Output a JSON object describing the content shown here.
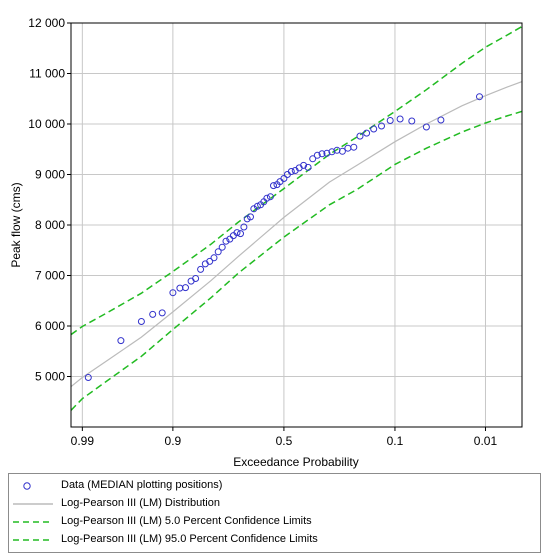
{
  "chart_data": {
    "type": "scatter",
    "xlabel": "Exceedance Probability",
    "ylabel": "Peak flow (cms)",
    "x_scale": "normal probability (reversed)",
    "x_tick_labels": [
      "0.99",
      "0.9",
      "0.5",
      "0.1",
      "0.01"
    ],
    "x_ticks": [
      0.99,
      0.9,
      0.5,
      0.1,
      0.01
    ],
    "y_tick_labels": [
      "5 000",
      "6 000",
      "7 000",
      "8 000",
      "9 000",
      "10 000",
      "11 000",
      "12 000"
    ],
    "y_ticks": [
      5000,
      6000,
      7000,
      8000,
      9000,
      10000,
      11000,
      12000
    ],
    "xlim": [
      0.993,
      0.003
    ],
    "ylim": [
      4000,
      12000
    ],
    "grid": true,
    "legend_position": "bottom",
    "colors": {
      "data": "#3333cc",
      "fit": "#bbbbbb",
      "conf": "#22bb22"
    },
    "series": [
      {
        "name": "Data (MEDIAN plotting positions)",
        "style": "circles",
        "x": [
          0.988,
          0.97,
          0.95,
          0.935,
          0.92,
          0.9,
          0.885,
          0.872,
          0.858,
          0.846,
          0.832,
          0.818,
          0.804,
          0.79,
          0.776,
          0.762,
          0.748,
          0.734,
          0.72,
          0.706,
          0.692,
          0.678,
          0.664,
          0.65,
          0.636,
          0.62,
          0.606,
          0.592,
          0.578,
          0.562,
          0.548,
          0.532,
          0.518,
          0.5,
          0.484,
          0.466,
          0.448,
          0.43,
          0.41,
          0.39,
          0.37,
          0.35,
          0.33,
          0.31,
          0.29,
          0.27,
          0.25,
          0.23,
          0.21,
          0.19,
          0.17,
          0.15,
          0.13,
          0.11,
          0.09,
          0.07,
          0.05,
          0.035,
          0.012
        ],
        "y": [
          4980,
          5710,
          6090,
          6230,
          6260,
          6660,
          6750,
          6760,
          6890,
          6940,
          7120,
          7230,
          7280,
          7350,
          7470,
          7560,
          7680,
          7720,
          7790,
          7850,
          7830,
          7960,
          8120,
          8160,
          8320,
          8370,
          8400,
          8460,
          8530,
          8560,
          8780,
          8800,
          8860,
          8920,
          9000,
          9060,
          9080,
          9130,
          9180,
          9140,
          9310,
          9380,
          9410,
          9420,
          9450,
          9480,
          9460,
          9520,
          9540,
          9760,
          9820,
          9900,
          9960,
          10070,
          10100,
          10060,
          9940,
          10080,
          10540
        ]
      },
      {
        "name": "Log-Pearson III (LM) Distribution",
        "style": "line",
        "x": [
          0.993,
          0.99,
          0.98,
          0.95,
          0.9,
          0.8,
          0.7,
          0.5,
          0.3,
          0.2,
          0.1,
          0.05,
          0.02,
          0.01,
          0.005,
          0.003
        ],
        "y": [
          4800,
          4980,
          5300,
          5780,
          6280,
          6900,
          7380,
          8150,
          8850,
          9180,
          9650,
          10000,
          10360,
          10560,
          10730,
          10840
        ]
      },
      {
        "name": "Log-Pearson III (LM) 5.0 Percent Confidence Limits",
        "style": "dashed",
        "x": [
          0.993,
          0.99,
          0.98,
          0.95,
          0.9,
          0.8,
          0.7,
          0.5,
          0.3,
          0.2,
          0.1,
          0.05,
          0.02,
          0.01,
          0.005,
          0.003
        ],
        "y": [
          5830,
          5990,
          6250,
          6650,
          7080,
          7620,
          8060,
          8720,
          9400,
          9740,
          10250,
          10680,
          11200,
          11520,
          11760,
          11930
        ]
      },
      {
        "name": "Log-Pearson III (LM) 95.0 Percent Confidence Limits",
        "style": "dashed",
        "x": [
          0.993,
          0.99,
          0.98,
          0.95,
          0.9,
          0.8,
          0.7,
          0.5,
          0.3,
          0.2,
          0.1,
          0.05,
          0.02,
          0.01,
          0.005,
          0.003
        ],
        "y": [
          4330,
          4560,
          4900,
          5400,
          5930,
          6560,
          7050,
          7760,
          8400,
          8700,
          9200,
          9520,
          9840,
          10020,
          10160,
          10250
        ]
      }
    ]
  }
}
